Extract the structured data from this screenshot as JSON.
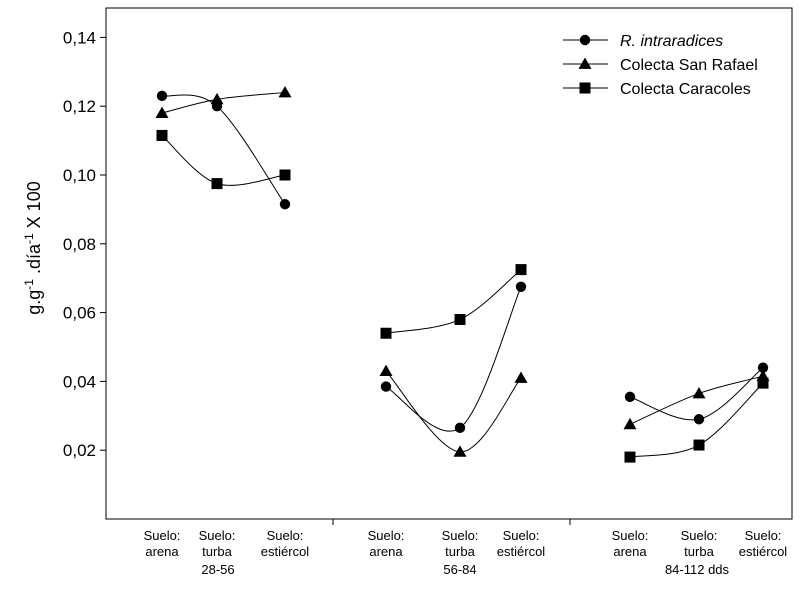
{
  "chart_data": {
    "type": "line",
    "ylabel_parts": [
      "g.g",
      "-1",
      " .día",
      "-1",
      " X 100"
    ],
    "ylim": [
      0,
      0.15
    ],
    "yticks": [
      0.02,
      0.04,
      0.06,
      0.08,
      0.1,
      0.12,
      0.14
    ],
    "ytick_labels": [
      "0,02",
      "0,04",
      "0,06",
      "0,08",
      "0,10",
      "0,12",
      "0,14"
    ],
    "groups": [
      {
        "label": "28-56",
        "categories": [
          [
            "Suelo:",
            "arena"
          ],
          [
            "Suelo:",
            "turba"
          ],
          [
            "Suelo:",
            "estiércol"
          ]
        ]
      },
      {
        "label": "56-84",
        "categories": [
          [
            "Suelo:",
            "arena"
          ],
          [
            "Suelo:",
            "turba"
          ],
          [
            "Suelo:",
            "estiércol"
          ]
        ]
      },
      {
        "label": "84-112 dds",
        "categories": [
          [
            "Suelo:",
            "arena"
          ],
          [
            "Suelo:",
            "turba"
          ],
          [
            "Suelo:",
            "estiércol"
          ]
        ]
      }
    ],
    "series": [
      {
        "name": "R. intraradices",
        "italic": true,
        "marker": "circle",
        "values": [
          [
            0.123,
            0.12,
            0.0915
          ],
          [
            0.0385,
            0.0265,
            0.0675
          ],
          [
            0.0355,
            0.029,
            0.044
          ]
        ]
      },
      {
        "name": "Colecta San Rafael",
        "italic": false,
        "marker": "triangle",
        "values": [
          [
            0.118,
            0.122,
            0.124
          ],
          [
            0.043,
            0.0195,
            0.041
          ],
          [
            0.0275,
            0.0365,
            0.0415
          ]
        ]
      },
      {
        "name": "Colecta Caracoles",
        "italic": false,
        "marker": "square",
        "values": [
          [
            0.1115,
            0.0975,
            0.1
          ],
          [
            0.054,
            0.058,
            0.0725
          ],
          [
            0.018,
            0.0215,
            0.0395
          ]
        ]
      }
    ],
    "grid": false,
    "legend_position": "top-right"
  }
}
